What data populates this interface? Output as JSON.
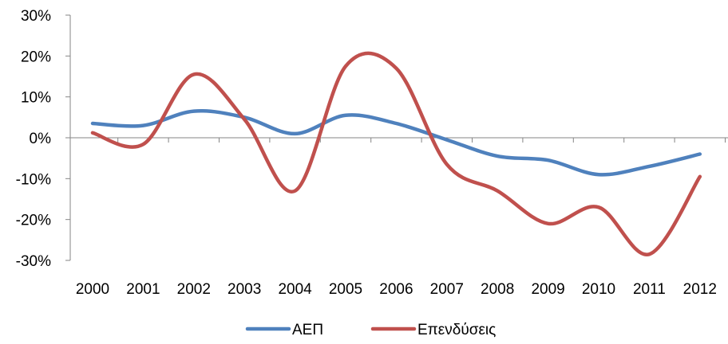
{
  "chart_data": {
    "type": "line",
    "categories": [
      "2000",
      "2001",
      "2002",
      "2003",
      "2004",
      "2005",
      "2006",
      "2007",
      "2008",
      "2009",
      "2010",
      "2011",
      "2012"
    ],
    "series": [
      {
        "name": "ΑΕΠ",
        "color": "#4F81BD",
        "values": [
          3.5,
          3.0,
          6.5,
          5.0,
          1.0,
          5.5,
          3.5,
          -0.5,
          -4.5,
          -5.5,
          -9.0,
          -7.0,
          -4.0
        ]
      },
      {
        "name": "Επενδύσεις",
        "color": "#C0504D",
        "values": [
          1.2,
          -1.6,
          15.5,
          4.5,
          -13.0,
          17.5,
          17.0,
          -6.5,
          -13.0,
          -21.0,
          -17.0,
          -28.5,
          -9.5
        ]
      }
    ],
    "y_ticks": [
      "30%",
      "20%",
      "10%",
      "0%",
      "-10%",
      "-20%",
      "-30%"
    ],
    "ylim": [
      -30,
      30
    ],
    "grid": false,
    "legend": "bottom"
  }
}
